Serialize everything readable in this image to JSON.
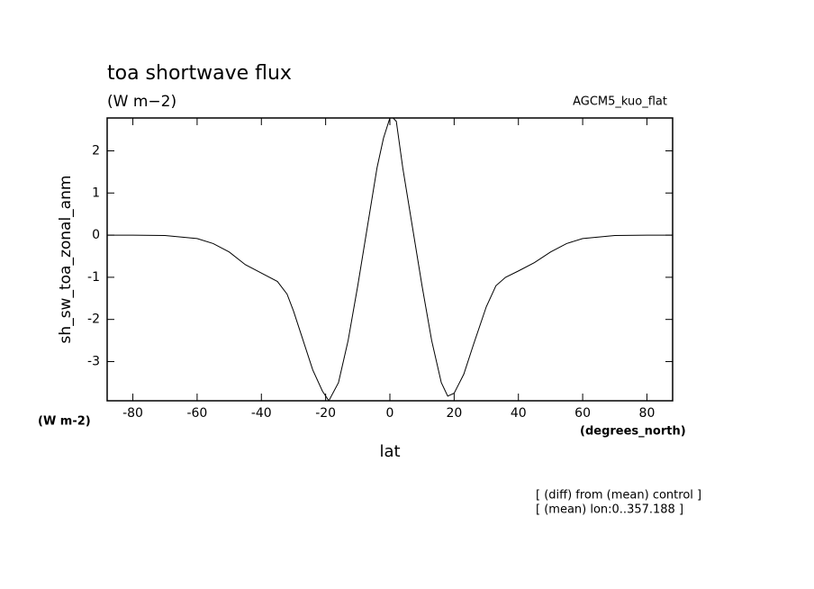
{
  "chart_data": {
    "type": "line",
    "title": "toa shortwave flux",
    "subtitle": "(W m−2)",
    "annotation_right": "AGCM5_kuo_flat",
    "y_label": "sh_sw_toa_zonal_anm",
    "y_units": "(W m-2)",
    "x_units": "(degrees_north)",
    "x_label": "lat",
    "notes": [
      "[ (diff) from (mean) control ]",
      "[ (mean) lon:0..357.188 ]"
    ],
    "x": [
      -88,
      -80,
      -70,
      -60,
      -55,
      -50,
      -45,
      -40,
      -35,
      -32,
      -30,
      -27,
      -24,
      -21,
      -19,
      -16,
      -13,
      -10,
      -7,
      -4,
      -2,
      0,
      1,
      2,
      4,
      7,
      10,
      13,
      16,
      18,
      20,
      23,
      26,
      30,
      33,
      36,
      40,
      45,
      50,
      55,
      60,
      70,
      80,
      88
    ],
    "series": [
      {
        "name": "sh_sw_toa_zonal_anm",
        "color": "#000000",
        "values": [
          0,
          0,
          -0.01,
          -0.08,
          -0.2,
          -0.4,
          -0.7,
          -0.9,
          -1.1,
          -1.4,
          -1.8,
          -2.5,
          -3.2,
          -3.7,
          -3.93,
          -3.5,
          -2.5,
          -1.2,
          0.2,
          1.6,
          2.3,
          2.78,
          2.78,
          2.7,
          1.6,
          0.2,
          -1.2,
          -2.5,
          -3.5,
          -3.82,
          -3.75,
          -3.3,
          -2.6,
          -1.7,
          -1.2,
          -1.0,
          -0.85,
          -0.65,
          -0.4,
          -0.2,
          -0.08,
          -0.01,
          0,
          0
        ]
      }
    ],
    "xlim": [
      -88,
      88
    ],
    "xticks": [
      -80,
      -60,
      -40,
      -20,
      0,
      20,
      40,
      60,
      80
    ],
    "ylim": [
      -3.93,
      2.78
    ],
    "yticks": [
      -3,
      -2,
      -1,
      0,
      1,
      2
    ]
  }
}
